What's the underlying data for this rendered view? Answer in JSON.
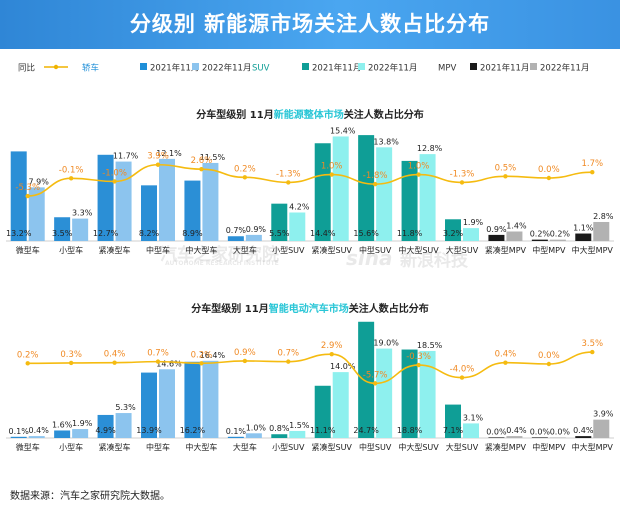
{
  "header": {
    "title": "分级别 新能源市场关注人数占比分布"
  },
  "legend": {
    "items": [
      {
        "label": "同比",
        "kind": "line",
        "color": "#f0b400"
      },
      {
        "label": "轿车",
        "kind": "group",
        "color": "#1f8fd8"
      },
      {
        "label": "2021年11月",
        "kind": "square",
        "color": "#1f8fd8"
      },
      {
        "label": "2022年11月",
        "kind": "square",
        "color": "#8cc4ee"
      },
      {
        "label": "SUV",
        "kind": "group",
        "color": "#0f9e96"
      },
      {
        "label": "2021年11月",
        "kind": "square",
        "color": "#0f9e96"
      },
      {
        "label": "2022年11月",
        "kind": "square",
        "color": "#8ef0ee"
      },
      {
        "label": "MPV",
        "kind": "group",
        "color": "#333333"
      },
      {
        "label": "2021年11月",
        "kind": "square",
        "color": "#1a1a1a"
      },
      {
        "label": "2022年11月",
        "kind": "square",
        "color": "#b2b2b2"
      }
    ]
  },
  "colors": {
    "sedan_2021": "#2b8fd6",
    "sedan_2022": "#8cc4ee",
    "suv_2021": "#0f9e96",
    "suv_2022": "#8ef0ee",
    "mpv_2021": "#1a1a1a",
    "mpv_2022": "#b2b2b2",
    "yoy_line": "#f5bb10",
    "yoy_pos": "#f08a24",
    "yoy_neg": "#f08a24"
  },
  "watermarks": [
    "汽车之家研究院",
    "AUTOHOME RESEARCH INSTITUTE",
    "sina",
    "新浪科技"
  ],
  "chart_data": [
    {
      "type": "bar",
      "title_prefix": "分车型级别 11月",
      "title_highlight": "新能源整体市场",
      "title_suffix": "关注人数占比分布",
      "categories": [
        "微型车",
        "小型车",
        "紧凑型车",
        "中型车",
        "中大型车",
        "大型车",
        "小型SUV",
        "紧凑型SUV",
        "中型SUV",
        "中大型SUV",
        "大型SUV",
        "紧凑型MPV",
        "中型MPV",
        "中大型MPV"
      ],
      "groups": [
        "sedan",
        "sedan",
        "sedan",
        "sedan",
        "sedan",
        "sedan",
        "suv",
        "suv",
        "suv",
        "suv",
        "suv",
        "mpv",
        "mpv",
        "mpv"
      ],
      "series": [
        {
          "name": "2021年11月",
          "values": [
            13.2,
            3.5,
            12.7,
            8.2,
            8.9,
            0.7,
            5.5,
            14.4,
            15.6,
            11.8,
            3.2,
            0.9,
            0.2,
            1.1
          ]
        },
        {
          "name": "2022年11月",
          "values": [
            7.9,
            3.3,
            11.7,
            12.1,
            11.5,
            0.9,
            4.2,
            15.4,
            13.8,
            12.8,
            1.9,
            1.4,
            0.2,
            2.8
          ]
        }
      ],
      "yoy": [
        -5.3,
        -0.1,
        -1.0,
        3.9,
        2.6,
        0.2,
        -1.3,
        1.0,
        -1.8,
        1.0,
        -1.3,
        0.5,
        0.0,
        1.7
      ],
      "yoy_labels": [
        "-5.3%",
        "-0.1%",
        "-1.0%",
        "3.9%",
        "2.6%",
        "0.2%",
        "-1.3%",
        "1.0%",
        "-1.8%",
        "1.0%",
        "-1.3%",
        "0.5%",
        "0.0%",
        "1.7%"
      ]
    },
    {
      "type": "bar",
      "title_prefix": "分车型级别 11月",
      "title_highlight": "智能电动汽车市场",
      "title_suffix": "关注人数占比分布",
      "categories": [
        "微型车",
        "小型车",
        "紧凑型车",
        "中型车",
        "中大型车",
        "大型车",
        "小型SUV",
        "紧凑型SUV",
        "中型SUV",
        "中大型SUV",
        "大型SUV",
        "紧凑型MPV",
        "中型MPV",
        "中大型MPV"
      ],
      "groups": [
        "sedan",
        "sedan",
        "sedan",
        "sedan",
        "sedan",
        "sedan",
        "suv",
        "suv",
        "suv",
        "suv",
        "suv",
        "mpv",
        "mpv",
        "mpv"
      ],
      "series": [
        {
          "name": "2021年11月",
          "values": [
            0.1,
            1.6,
            4.9,
            13.9,
            16.2,
            0.1,
            0.8,
            11.1,
            24.7,
            18.8,
            7.1,
            0.0,
            0.0,
            0.4
          ]
        },
        {
          "name": "2022年11月",
          "values": [
            0.4,
            1.9,
            5.3,
            14.6,
            16.4,
            1.0,
            1.5,
            14.0,
            19.0,
            18.5,
            3.1,
            0.4,
            0.0,
            3.9
          ]
        }
      ],
      "yoy": [
        0.2,
        0.3,
        0.4,
        0.7,
        0.2,
        0.9,
        0.7,
        2.9,
        -5.7,
        -0.3,
        -4.0,
        0.4,
        0.0,
        3.5
      ],
      "yoy_labels": [
        "0.2%",
        "0.3%",
        "0.4%",
        "0.7%",
        "0.2%",
        "0.9%",
        "0.7%",
        "2.9%",
        "-5.7%",
        "-0.3%",
        "-4.0%",
        "0.4%",
        "0.0%",
        "3.5%"
      ]
    }
  ],
  "footer": {
    "source": "数据来源：汽车之家研究院大数据。"
  }
}
